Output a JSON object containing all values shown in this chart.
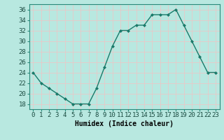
{
  "x": [
    0,
    1,
    2,
    3,
    4,
    5,
    6,
    7,
    8,
    9,
    10,
    11,
    12,
    13,
    14,
    15,
    16,
    17,
    18,
    19,
    20,
    21,
    22,
    23
  ],
  "y": [
    24,
    22,
    21,
    20,
    19,
    18,
    18,
    18,
    21,
    25,
    29,
    32,
    32,
    33,
    33,
    35,
    35,
    35,
    36,
    33,
    30,
    27,
    24,
    24
  ],
  "line_color": "#1a7a6a",
  "marker_color": "#1a7a6a",
  "bg_color": "#b8e8e0",
  "grid_color": "#e8c8c8",
  "xlabel": "Humidex (Indice chaleur)",
  "xlim": [
    -0.5,
    23.5
  ],
  "ylim": [
    17,
    37
  ],
  "yticks": [
    18,
    20,
    22,
    24,
    26,
    28,
    30,
    32,
    34,
    36
  ],
  "xticks": [
    0,
    1,
    2,
    3,
    4,
    5,
    6,
    7,
    8,
    9,
    10,
    11,
    12,
    13,
    14,
    15,
    16,
    17,
    18,
    19,
    20,
    21,
    22,
    23
  ],
  "label_fontsize": 7,
  "tick_fontsize": 6.5
}
